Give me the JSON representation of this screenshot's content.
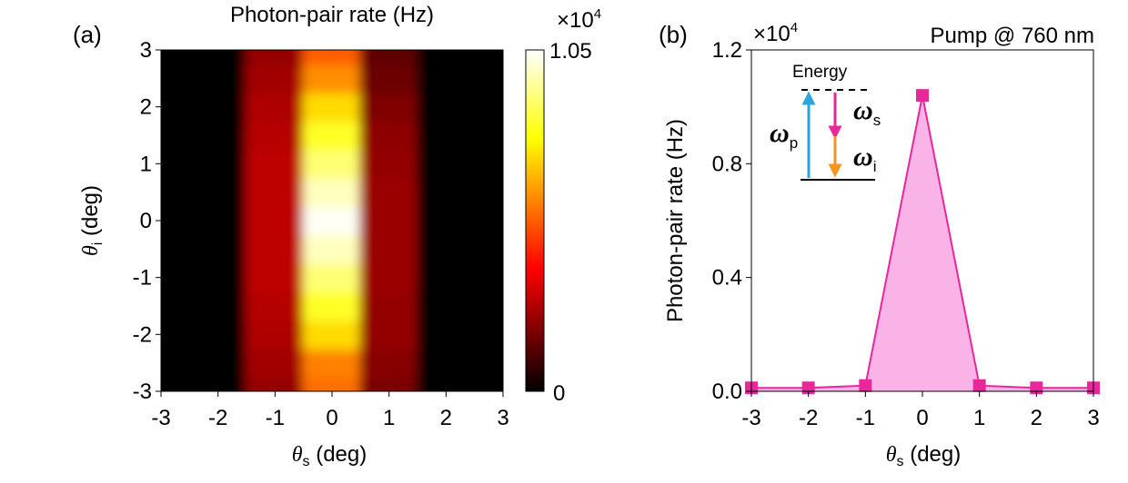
{
  "chart_data": [
    {
      "type": "heatmap",
      "panel_label": "(a)",
      "title": "Photon-pair rate (Hz)",
      "xlabel": {
        "symbol": "θ",
        "sub": "s",
        "unit": " (deg)"
      },
      "ylabel": {
        "symbol": "θ",
        "sub": "i",
        "unit": " (deg)"
      },
      "xlim": [
        -3,
        3
      ],
      "ylim": [
        -3,
        3
      ],
      "xticks": [
        "-3",
        "-2",
        "-1",
        "0",
        "1",
        "2",
        "3"
      ],
      "yticks": [
        "-3",
        "-2",
        "-1",
        "0",
        "1",
        "2",
        "3"
      ],
      "colorbar": {
        "min": 0,
        "max": 1.05,
        "min_label": "0",
        "max_label": "1.05",
        "multiplier": {
          "base": "×10",
          "exp": "4"
        },
        "colormap": "hot"
      },
      "x": [
        -3,
        -2,
        -1,
        0,
        1,
        2,
        3
      ],
      "y": [
        -3,
        -2.5,
        -2,
        -1.5,
        -1,
        -0.5,
        0,
        0.5,
        1,
        1.5,
        2,
        2.5,
        3
      ],
      "z": [
        [
          0.0,
          0.0,
          0.22,
          0.55,
          0.18,
          0.0,
          0.0
        ],
        [
          0.0,
          0.0,
          0.24,
          0.58,
          0.2,
          0.0,
          0.0
        ],
        [
          0.0,
          0.0,
          0.26,
          0.72,
          0.22,
          0.0,
          0.0
        ],
        [
          0.0,
          0.0,
          0.27,
          0.82,
          0.22,
          0.0,
          0.0
        ],
        [
          0.0,
          0.0,
          0.28,
          0.9,
          0.23,
          0.0,
          0.0
        ],
        [
          0.0,
          0.0,
          0.28,
          0.98,
          0.23,
          0.0,
          0.0
        ],
        [
          0.0,
          0.0,
          0.28,
          1.04,
          0.23,
          0.0,
          0.0
        ],
        [
          0.0,
          0.0,
          0.28,
          0.98,
          0.23,
          0.0,
          0.0
        ],
        [
          0.0,
          0.0,
          0.28,
          0.9,
          0.22,
          0.0,
          0.0
        ],
        [
          0.0,
          0.0,
          0.27,
          0.82,
          0.21,
          0.0,
          0.0
        ],
        [
          0.0,
          0.0,
          0.26,
          0.72,
          0.19,
          0.0,
          0.0
        ],
        [
          0.0,
          0.0,
          0.24,
          0.6,
          0.16,
          0.0,
          0.0
        ],
        [
          0.0,
          0.0,
          0.22,
          0.52,
          0.14,
          0.0,
          0.0
        ]
      ]
    },
    {
      "type": "area",
      "panel_label": "(b)",
      "title": "Pump @ 760 nm",
      "xlabel": {
        "symbol": "θ",
        "sub": "s",
        "unit": " (deg)"
      },
      "ylabel": "Photon-pair rate (Hz)",
      "y_multiplier": {
        "base": "×10",
        "exp": "4"
      },
      "xlim": [
        -3,
        3
      ],
      "ylim": [
        0,
        1.2
      ],
      "xticks": [
        "-3",
        "-2",
        "-1",
        "0",
        "1",
        "2",
        "3"
      ],
      "yticks": [
        "0.0",
        "0.4",
        "0.8",
        "1.2"
      ],
      "x": [
        -3,
        -2,
        -1,
        0,
        1,
        2,
        3
      ],
      "values": [
        0.012,
        0.012,
        0.02,
        1.04,
        0.02,
        0.012,
        0.012
      ],
      "marker": "square",
      "colors": {
        "line": "#e8279a",
        "fill": "#f9b3e6",
        "marker": "#e8279a"
      },
      "inset": {
        "title": "Energy",
        "labels": [
          {
            "symbol": "ω",
            "sub": "p",
            "color": "#2ba4e0"
          },
          {
            "symbol": "ω",
            "sub": "s",
            "color": "#e8279a"
          },
          {
            "symbol": "ω",
            "sub": "i",
            "color": "#f7941d"
          }
        ]
      }
    }
  ]
}
